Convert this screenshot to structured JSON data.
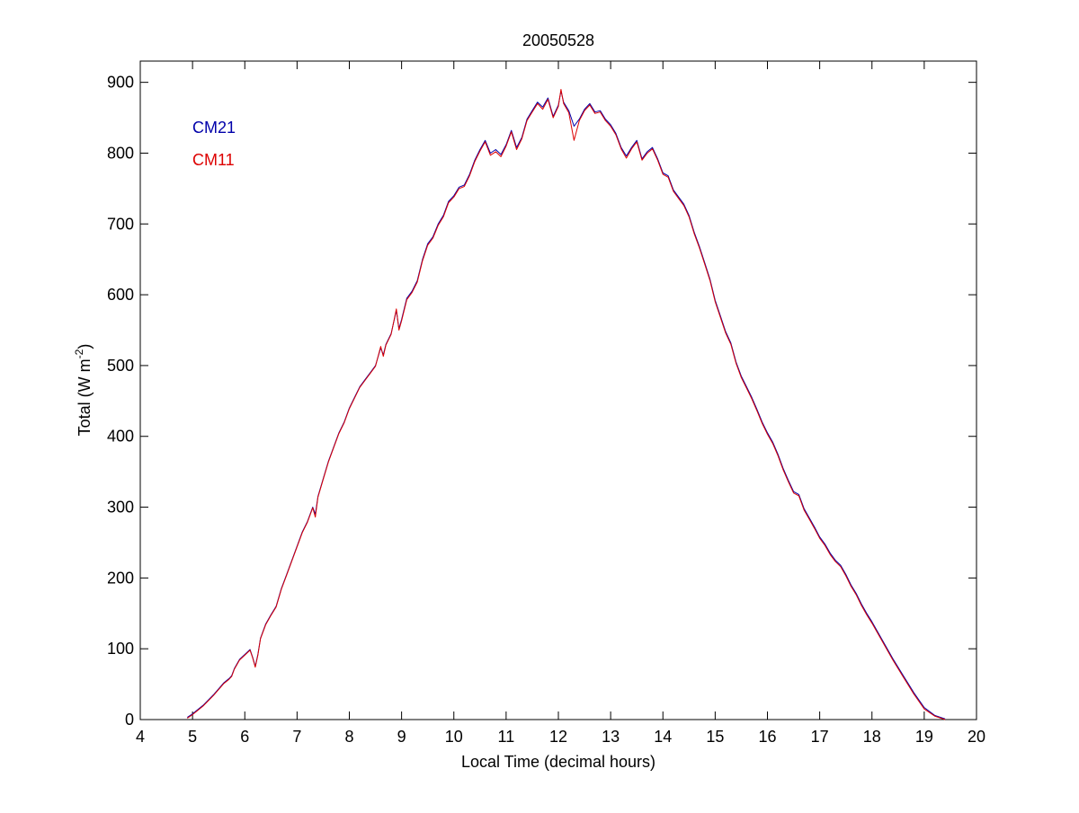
{
  "chart_data": {
    "type": "line",
    "title": "20050528",
    "xlabel": "Local Time (decimal hours)",
    "ylabel": {
      "prefix": "Total (W m",
      "superscript": "-2",
      "suffix": ")"
    },
    "xlim": [
      4,
      20
    ],
    "ylim": [
      0,
      930
    ],
    "xticks": [
      4,
      5,
      6,
      7,
      8,
      9,
      10,
      11,
      12,
      13,
      14,
      15,
      16,
      17,
      18,
      19,
      20
    ],
    "yticks": [
      0,
      100,
      200,
      300,
      400,
      500,
      600,
      700,
      800,
      900
    ],
    "grid": false,
    "legend_placement": "top-left",
    "series": [
      {
        "name": "CM21",
        "color": "#0000aa",
        "x": [
          4.9,
          5.0,
          5.2,
          5.4,
          5.6,
          5.7,
          5.75,
          5.8,
          5.9,
          6.0,
          6.1,
          6.15,
          6.2,
          6.25,
          6.3,
          6.4,
          6.5,
          6.6,
          6.7,
          6.8,
          6.9,
          7.0,
          7.1,
          7.2,
          7.3,
          7.35,
          7.4,
          7.5,
          7.6,
          7.7,
          7.8,
          7.9,
          8.0,
          8.1,
          8.2,
          8.3,
          8.4,
          8.5,
          8.6,
          8.65,
          8.7,
          8.8,
          8.9,
          8.95,
          9.0,
          9.1,
          9.2,
          9.3,
          9.4,
          9.5,
          9.6,
          9.7,
          9.8,
          9.9,
          10.0,
          10.1,
          10.2,
          10.3,
          10.4,
          10.5,
          10.6,
          10.7,
          10.8,
          10.9,
          11.0,
          11.1,
          11.2,
          11.3,
          11.4,
          11.5,
          11.6,
          11.7,
          11.8,
          11.9,
          12.0,
          12.05,
          12.1,
          12.2,
          12.3,
          12.4,
          12.5,
          12.6,
          12.7,
          12.8,
          12.9,
          13.0,
          13.1,
          13.2,
          13.3,
          13.4,
          13.5,
          13.6,
          13.7,
          13.8,
          13.9,
          14.0,
          14.1,
          14.2,
          14.3,
          14.4,
          14.5,
          14.6,
          14.7,
          14.8,
          14.9,
          15.0,
          15.1,
          15.2,
          15.3,
          15.4,
          15.5,
          15.6,
          15.7,
          15.8,
          15.9,
          16.0,
          16.1,
          16.2,
          16.3,
          16.4,
          16.5,
          16.6,
          16.7,
          16.8,
          16.9,
          17.0,
          17.1,
          17.2,
          17.3,
          17.4,
          17.5,
          17.6,
          17.7,
          17.8,
          17.9,
          18.0,
          18.2,
          18.4,
          18.6,
          18.8,
          19.0,
          19.2,
          19.4
        ],
        "y": [
          3,
          8,
          20,
          35,
          52,
          58,
          62,
          72,
          85,
          92,
          99,
          88,
          75,
          92,
          115,
          135,
          148,
          160,
          185,
          205,
          225,
          245,
          265,
          280,
          300,
          290,
          315,
          340,
          365,
          385,
          405,
          420,
          440,
          455,
          470,
          480,
          490,
          500,
          525,
          515,
          530,
          545,
          578,
          552,
          565,
          595,
          605,
          620,
          650,
          672,
          682,
          700,
          712,
          732,
          740,
          752,
          755,
          770,
          790,
          805,
          818,
          800,
          805,
          798,
          812,
          832,
          808,
          822,
          848,
          860,
          872,
          865,
          878,
          852,
          868,
          888,
          872,
          860,
          838,
          848,
          862,
          870,
          858,
          860,
          848,
          840,
          828,
          808,
          796,
          808,
          818,
          792,
          802,
          808,
          792,
          772,
          768,
          748,
          738,
          728,
          712,
          688,
          668,
          645,
          622,
          592,
          570,
          548,
          532,
          505,
          485,
          470,
          455,
          438,
          420,
          405,
          392,
          375,
          355,
          338,
          322,
          318,
          298,
          285,
          272,
          258,
          248,
          235,
          225,
          218,
          205,
          190,
          178,
          163,
          150,
          138,
          112,
          86,
          62,
          38,
          17,
          6,
          1
        ]
      },
      {
        "name": "CM11",
        "color": "#dd0000",
        "x": [
          4.9,
          5.0,
          5.2,
          5.4,
          5.6,
          5.7,
          5.75,
          5.8,
          5.9,
          6.0,
          6.1,
          6.15,
          6.2,
          6.25,
          6.3,
          6.4,
          6.5,
          6.6,
          6.7,
          6.8,
          6.9,
          7.0,
          7.1,
          7.2,
          7.3,
          7.35,
          7.4,
          7.5,
          7.6,
          7.7,
          7.8,
          7.9,
          8.0,
          8.1,
          8.2,
          8.3,
          8.4,
          8.5,
          8.6,
          8.65,
          8.7,
          8.8,
          8.9,
          8.95,
          9.0,
          9.1,
          9.2,
          9.3,
          9.4,
          9.5,
          9.6,
          9.7,
          9.8,
          9.9,
          10.0,
          10.1,
          10.2,
          10.3,
          10.4,
          10.5,
          10.6,
          10.7,
          10.8,
          10.9,
          11.0,
          11.1,
          11.2,
          11.3,
          11.4,
          11.5,
          11.6,
          11.7,
          11.8,
          11.9,
          12.0,
          12.05,
          12.1,
          12.2,
          12.3,
          12.4,
          12.5,
          12.6,
          12.7,
          12.8,
          12.9,
          13.0,
          13.1,
          13.2,
          13.3,
          13.4,
          13.5,
          13.6,
          13.7,
          13.8,
          13.9,
          14.0,
          14.1,
          14.2,
          14.3,
          14.4,
          14.5,
          14.6,
          14.7,
          14.8,
          14.9,
          15.0,
          15.1,
          15.2,
          15.3,
          15.4,
          15.5,
          15.6,
          15.7,
          15.8,
          15.9,
          16.0,
          16.1,
          16.2,
          16.3,
          16.4,
          16.5,
          16.6,
          16.7,
          16.8,
          16.9,
          17.0,
          17.1,
          17.2,
          17.3,
          17.4,
          17.5,
          17.6,
          17.7,
          17.8,
          17.9,
          18.0,
          18.2,
          18.4,
          18.6,
          18.8,
          19.0,
          19.2,
          19.4
        ],
        "y": [
          2,
          7,
          19,
          34,
          51,
          57,
          61,
          71,
          84,
          91,
          98,
          87,
          74,
          91,
          114,
          134,
          147,
          159,
          184,
          204,
          224,
          244,
          264,
          279,
          299,
          286,
          314,
          339,
          364,
          384,
          404,
          419,
          439,
          454,
          469,
          479,
          489,
          499,
          527,
          513,
          529,
          544,
          580,
          550,
          563,
          593,
          603,
          618,
          648,
          670,
          680,
          698,
          710,
          730,
          738,
          750,
          753,
          768,
          788,
          803,
          816,
          797,
          802,
          795,
          810,
          830,
          805,
          820,
          846,
          858,
          870,
          862,
          876,
          850,
          866,
          890,
          870,
          857,
          818,
          846,
          860,
          868,
          856,
          858,
          846,
          838,
          826,
          806,
          793,
          806,
          816,
          790,
          800,
          806,
          790,
          770,
          766,
          746,
          736,
          726,
          710,
          686,
          666,
          643,
          620,
          590,
          568,
          546,
          530,
          503,
          483,
          468,
          453,
          436,
          418,
          403,
          390,
          373,
          353,
          336,
          320,
          316,
          296,
          283,
          270,
          256,
          246,
          233,
          223,
          216,
          203,
          188,
          176,
          161,
          148,
          136,
          110,
          84,
          60,
          36,
          15,
          5,
          0
        ]
      }
    ]
  }
}
